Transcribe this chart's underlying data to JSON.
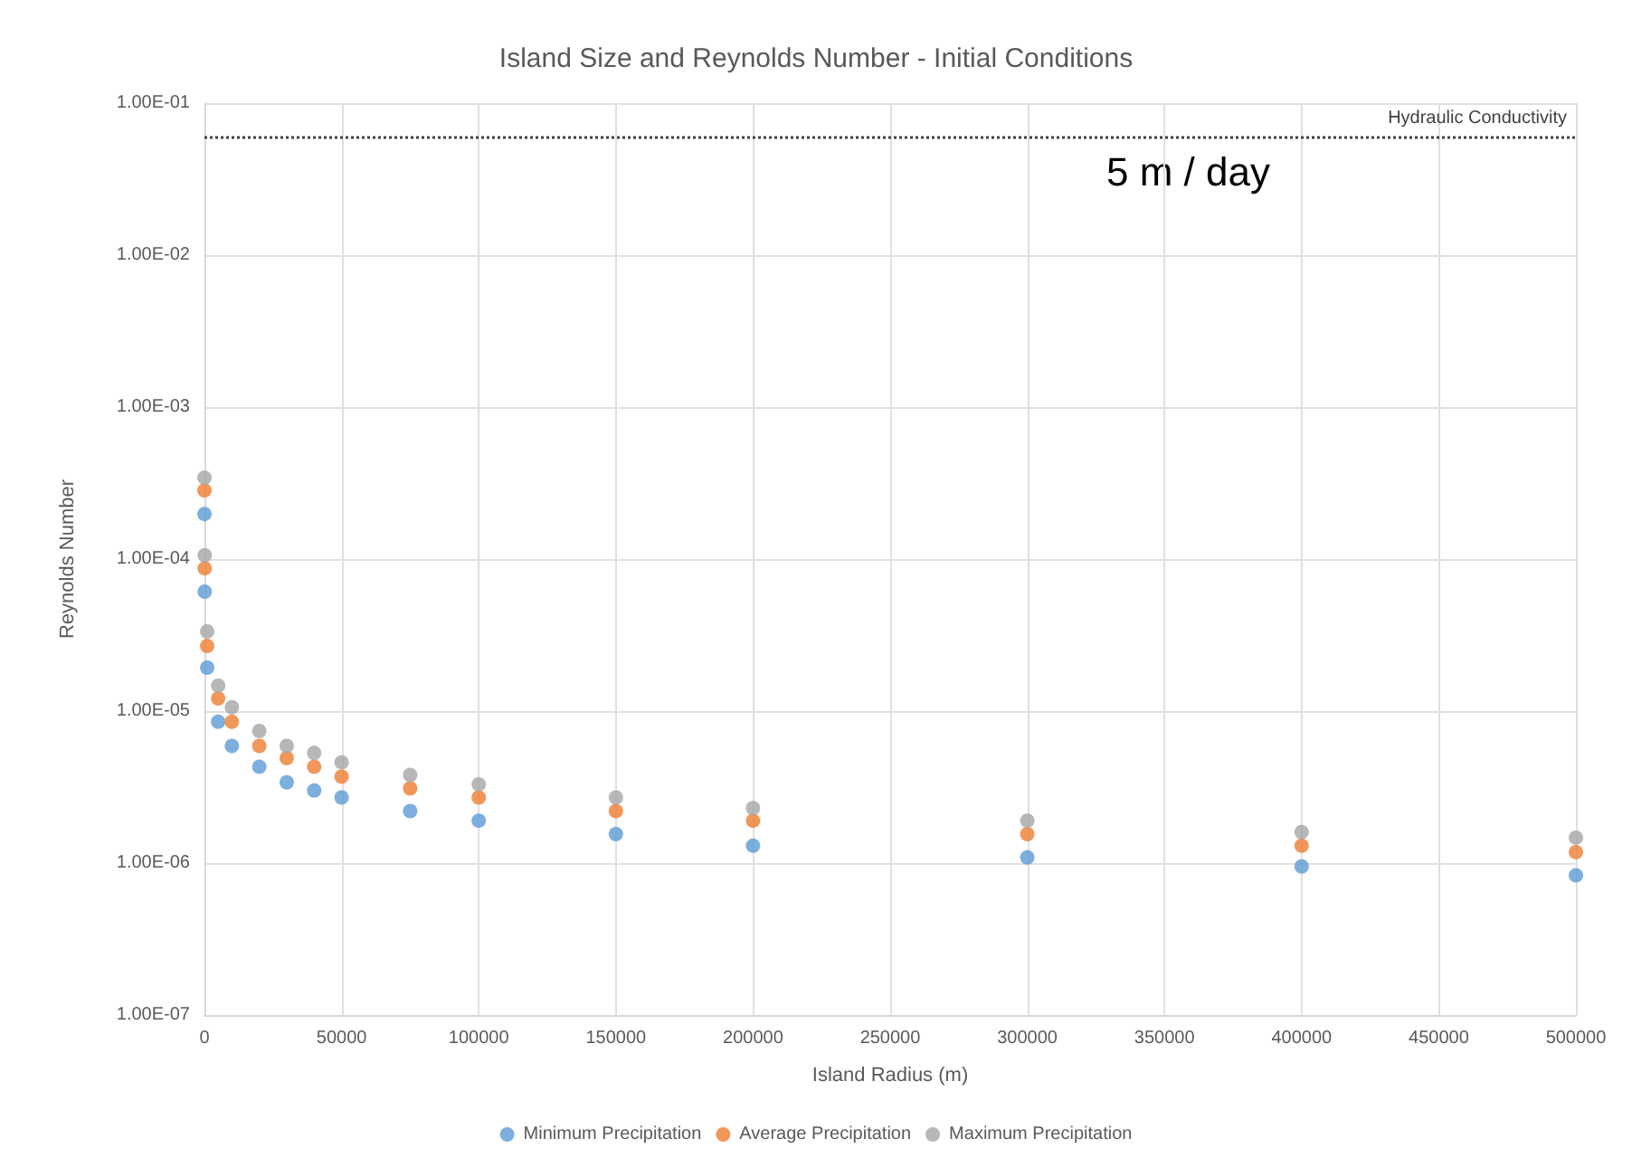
{
  "chart_data": {
    "type": "scatter",
    "title": "Island Size and Reynolds Number - Initial Conditions",
    "xlabel": "Island Radius (m)",
    "ylabel": "Reynolds Number",
    "x": [
      10,
      100,
      1000,
      5000,
      10000,
      20000,
      30000,
      40000,
      50000,
      75000,
      100000,
      150000,
      200000,
      300000,
      400000,
      500000
    ],
    "series": [
      {
        "name": "Minimum Precipitation",
        "color": "#5b9bd5",
        "values": [
          0.000198,
          6.1e-05,
          1.93e-05,
          8.5e-06,
          5.9e-06,
          4.3e-06,
          3.4e-06,
          3e-06,
          2.7e-06,
          2.2e-06,
          1.9e-06,
          1.55e-06,
          1.3e-06,
          1.09e-06,
          9.5e-07,
          8.3e-07
        ]
      },
      {
        "name": "Average Precipitation",
        "color": "#ed7d31",
        "values": [
          0.000283,
          8.7e-05,
          2.68e-05,
          1.21e-05,
          8.5e-06,
          5.9e-06,
          4.9e-06,
          4.3e-06,
          3.7e-06,
          3.1e-06,
          2.7e-06,
          2.2e-06,
          1.9e-06,
          1.55e-06,
          1.3e-06,
          1.18e-06
        ]
      },
      {
        "name": "Maximum Precipitation",
        "color": "#a5a5a5",
        "values": [
          0.000343,
          0.000106,
          3.34e-05,
          1.47e-05,
          1.06e-05,
          7.4e-06,
          5.9e-06,
          5.3e-06,
          4.6e-06,
          3.8e-06,
          3.3e-06,
          2.7e-06,
          2.3e-06,
          1.9e-06,
          1.6e-06,
          1.47e-06
        ]
      }
    ],
    "xlim": [
      0,
      500000
    ],
    "xticks": [
      0,
      50000,
      100000,
      150000,
      200000,
      250000,
      300000,
      350000,
      400000,
      450000,
      500000
    ],
    "ylim": [
      1e-07,
      0.1
    ],
    "yticks": [
      {
        "value": 1e-07,
        "label": "1.00E-07"
      },
      {
        "value": 1e-06,
        "label": "1.00E-06"
      },
      {
        "value": 1e-05,
        "label": "1.00E-05"
      },
      {
        "value": 0.0001,
        "label": "1.00E-04"
      },
      {
        "value": 0.001,
        "label": "1.00E-03"
      },
      {
        "value": 0.01,
        "label": "1.00E-02"
      },
      {
        "value": 0.1,
        "label": "1.00E-01"
      }
    ],
    "log": "y",
    "grid": true,
    "legend": "bottom",
    "marker": "circle",
    "ref_lines": [
      {
        "axis": "y",
        "value": 0.06,
        "label": "Hydraulic Conductivity",
        "color": "#404040",
        "line_style": "dotted"
      }
    ],
    "annotations": [
      "5 m / day"
    ]
  }
}
